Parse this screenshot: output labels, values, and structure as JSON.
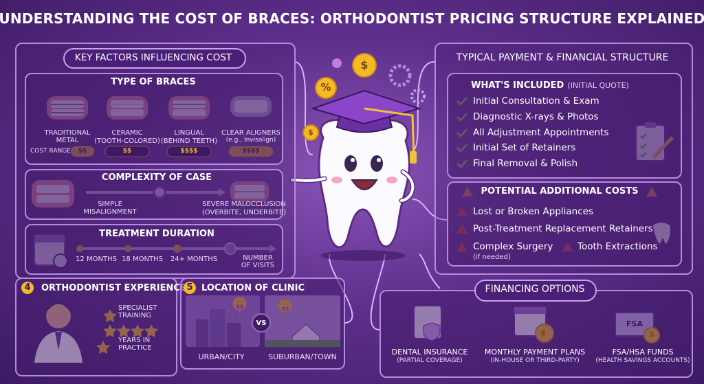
{
  "header": {
    "title": "UNDERSTANDING THE COST OF BRACES: ORTHODONTIST PRICING STRUCTURE EXPLAINED"
  },
  "icons": {
    "dollar": "$",
    "percent": "%"
  },
  "key_factors": {
    "title": "KEY FACTORS INFLUENCING COST",
    "type_of_braces": {
      "title": "TYPE OF BRACES",
      "cost_range_label": "COST RANGE",
      "options": [
        {
          "name": "TRADITIONAL METAL",
          "cost": "$$"
        },
        {
          "name": "CERAMIC",
          "note": "(TOOTH-COLORED)",
          "cost": "$$"
        },
        {
          "name": "LINGUAL",
          "note": "(BEHIND TEETH)",
          "cost": "$$$$"
        },
        {
          "name": "CLEAR ALIGNERS",
          "note": "(e.g., Invisalign)",
          "cost": "$$$$"
        }
      ]
    },
    "complexity": {
      "title": "COMPLEXITY OF CASE",
      "low": "SIMPLE MISALIGNMENT",
      "high": "SEVERE MALOCCLUSION",
      "high_note": "(OVERBITE, UNDERBITE)"
    },
    "duration": {
      "title": "TREATMENT DURATION",
      "steps": [
        "12 MONTHS",
        "18 MONTHS",
        "24+ MONTHS"
      ],
      "end": "NUMBER OF VISITS"
    },
    "experience": {
      "number": "4",
      "title": "ORTHODONTIST EXPERIENCE",
      "items": [
        "SPECIALIST TRAINING",
        "YEARS IN PRACTICE"
      ]
    },
    "location": {
      "number": "5",
      "title": "LOCATION OF CLINIC",
      "urban": "URBAN/CITY",
      "versus": "VS",
      "suburban": "SUBURBAN/TOWN",
      "urban_cost": "$$",
      "suburban_cost": "$$"
    }
  },
  "payment": {
    "title": "TYPICAL PAYMENT & FINANCIAL STRUCTURE",
    "included": {
      "title": "WHAT'S INCLUDED",
      "note": "(INITIAL QUOTE)",
      "items": [
        "Initial Consultation & Exam",
        "Diagnostic X-rays & Photos",
        "All Adjustment Appointments",
        "Initial Set of Retainers",
        "Final Removal & Polish"
      ]
    },
    "additional": {
      "title": "POTENTIAL ADDITIONAL COSTS",
      "items": [
        "Lost or Broken Appliances",
        "Post-Treatment Replacement Retainers"
      ],
      "surgery": "Complex Surgery",
      "surgery_note": "(if needed)",
      "extractions": "Tooth Extractions"
    }
  },
  "financing": {
    "title": "FINANCING OPTIONS",
    "fsa_icon": "FSA",
    "options": [
      {
        "name": "DENTAL INSURANCE",
        "note": "(PARTIAL COVERAGE)"
      },
      {
        "name": "MONTHLY PAYMENT PLANS",
        "note": "(IN-HOUSE OR THIRD-PARTY)"
      },
      {
        "name": "FSA/HSA FUNDS",
        "note": "(HEALTH SAVINGS ACCOUNTS)"
      }
    ]
  }
}
